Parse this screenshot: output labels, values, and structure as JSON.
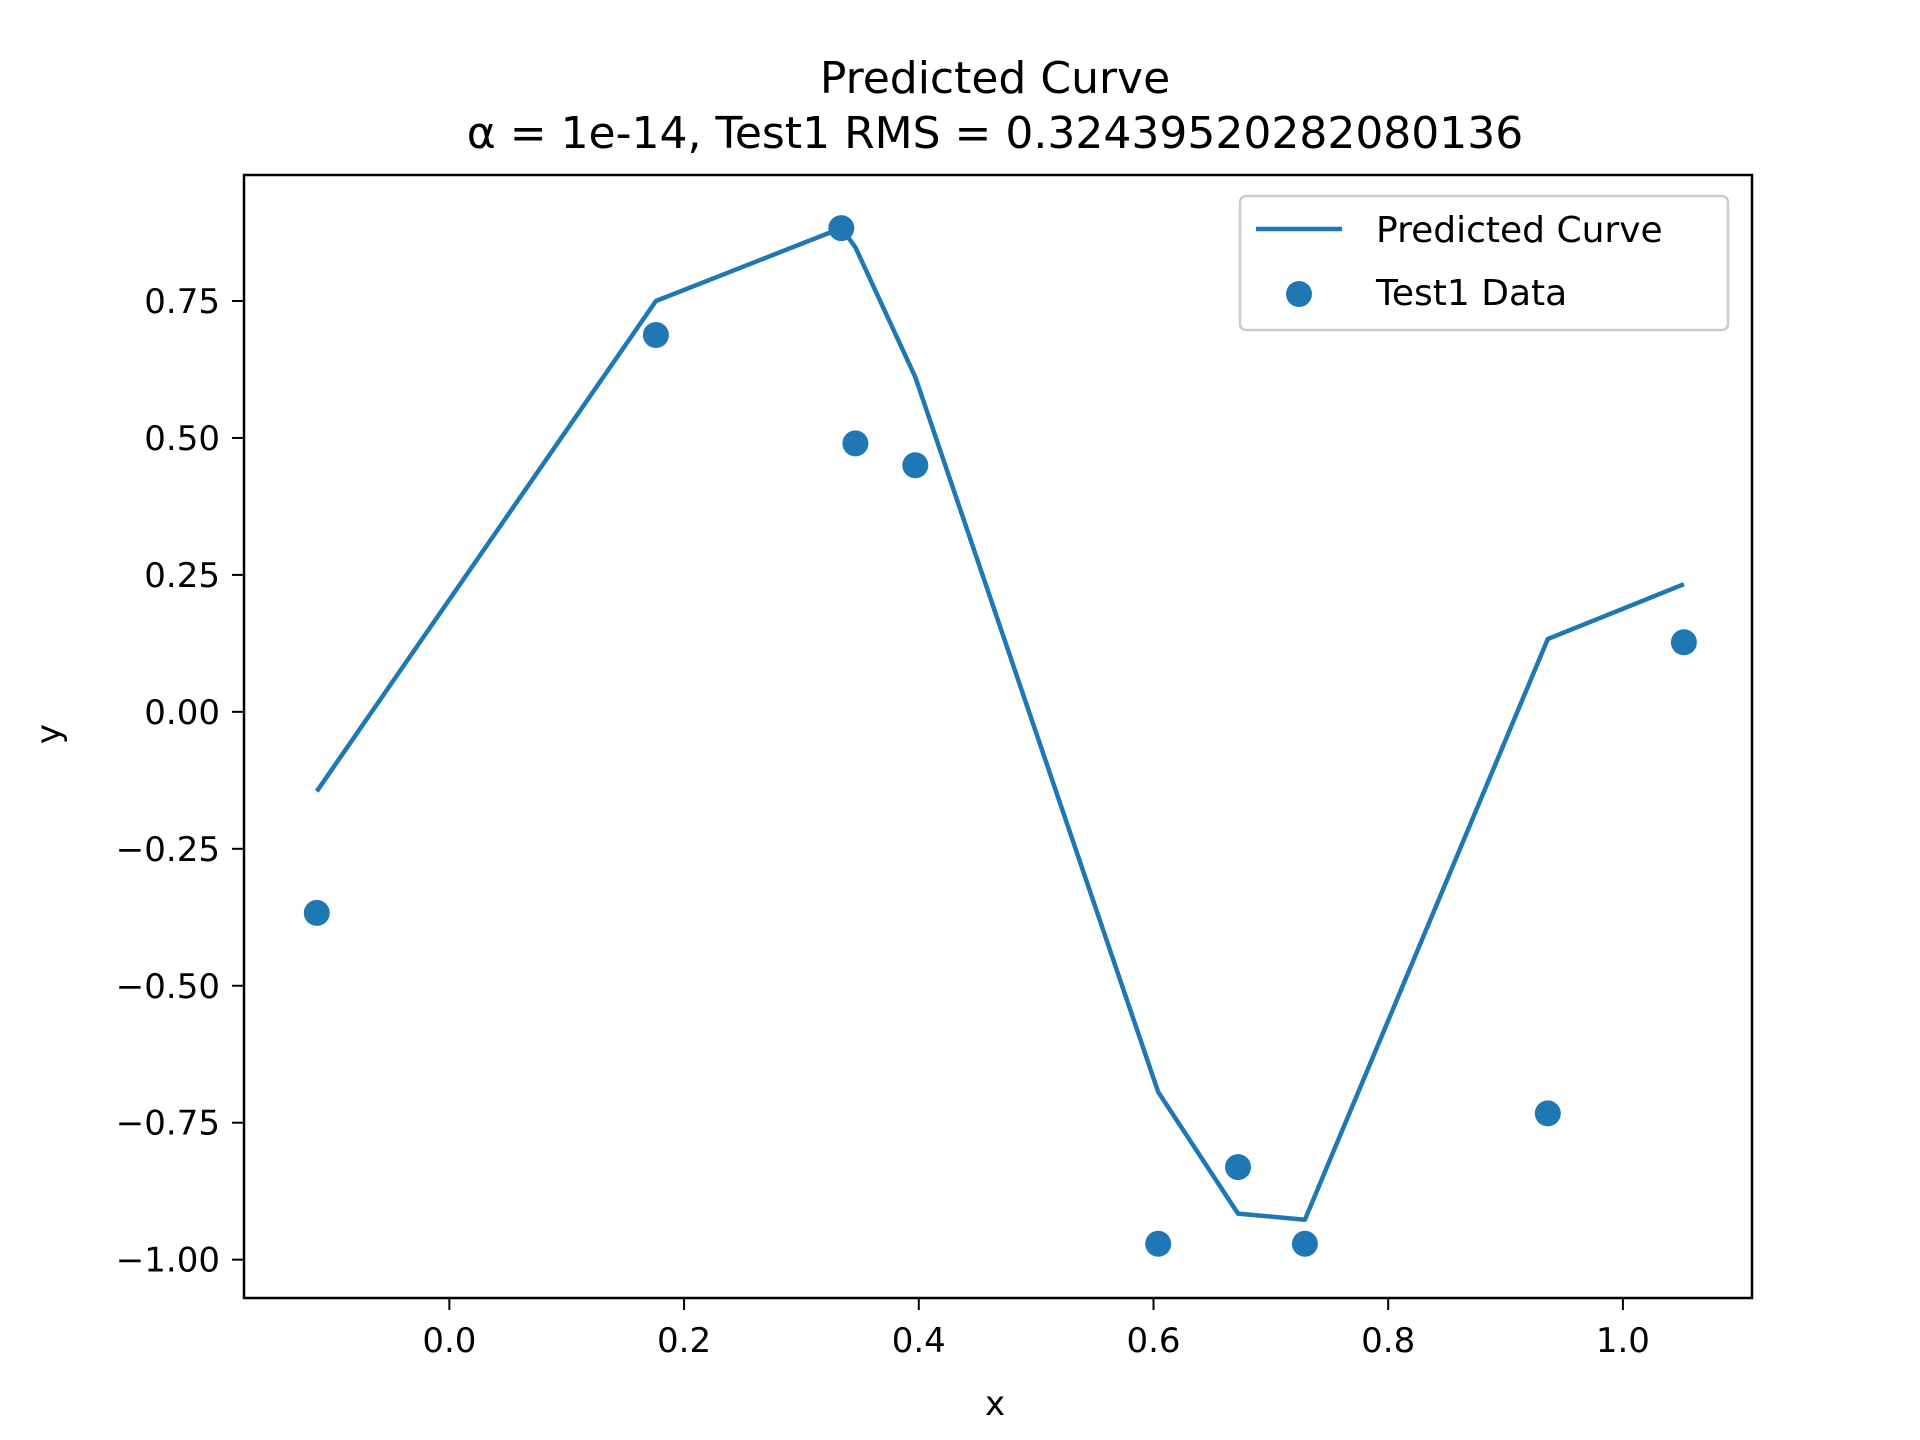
{
  "chart_data": {
    "type": "line",
    "title": "Predicted Curve",
    "subtitle": "α = 1e-14, Test1 RMS = 0.32439520282080136",
    "xlabel": "x",
    "ylabel": "y",
    "xlim": [
      -0.175,
      1.11
    ],
    "ylim": [
      -1.07,
      0.98
    ],
    "x_ticks": [
      0.0,
      0.2,
      0.4,
      0.6,
      0.8,
      1.0
    ],
    "x_tick_labels": [
      "0.0",
      "0.2",
      "0.4",
      "0.6",
      "0.8",
      "1.0"
    ],
    "y_ticks": [
      0.75,
      0.5,
      0.25,
      0.0,
      -0.25,
      -0.5,
      -0.75,
      -1.0
    ],
    "y_tick_labels": [
      "0.75",
      "0.50",
      "0.25",
      "0.00",
      "−0.25",
      "−0.50",
      "−0.75",
      "−1.00"
    ],
    "grid": false,
    "legend_position": "top-right",
    "color": "#1f77b4",
    "series": [
      {
        "name": "Predicted Curve",
        "kind": "line",
        "x": [
          -0.113,
          0.176,
          0.334,
          0.346,
          0.397,
          0.604,
          0.672,
          0.729,
          0.936,
          1.052
        ],
        "y": [
          -0.145,
          0.75,
          0.883,
          0.848,
          0.611,
          -0.694,
          -0.916,
          -0.927,
          0.133,
          0.233
        ]
      },
      {
        "name": "Test1 Data",
        "kind": "scatter",
        "x": [
          -0.113,
          0.176,
          0.334,
          0.346,
          0.397,
          0.604,
          0.672,
          0.729,
          0.936,
          1.052
        ],
        "y": [
          -0.367,
          0.688,
          0.883,
          0.49,
          0.45,
          -0.971,
          -0.831,
          -0.971,
          -0.733,
          0.127
        ]
      }
    ]
  }
}
